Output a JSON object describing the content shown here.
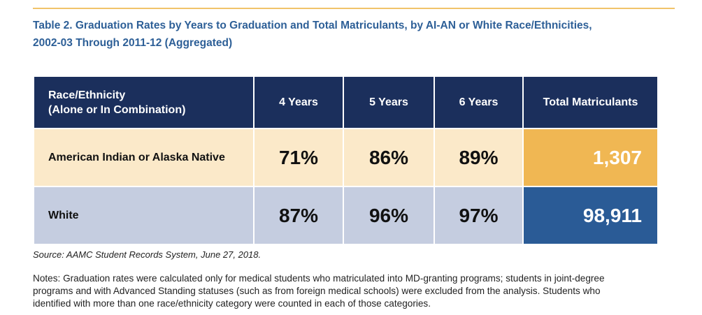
{
  "header": {
    "title_lines": [
      "Table 2. Graduation Rates by Years to Graduation and Total Matriculants, by AI-AN or White Race/Ethnicities,",
      "2002-03 Through 2011-12 (Aggregated)"
    ]
  },
  "table": {
    "columns": [
      [
        "Race/Ethnicity",
        "(Alone or In Combination)"
      ],
      "4 Years",
      "5 Years",
      "6 Years",
      "Total Matriculants"
    ],
    "rows": [
      [
        "American Indian or Alaska Native",
        "71%",
        "86%",
        "89%",
        "1,307"
      ],
      [
        "White",
        "87%",
        "96%",
        "97%",
        "98,911"
      ]
    ]
  },
  "source": "Source: AAMC Student Records System, June 27, 2018.",
  "notes_lines": [
    "Notes: Graduation rates were calculated only for medical students who matriculated into MD-granting programs; students in joint-degree",
    "programs and with Advanced Standing statuses (such as from foreign medical schools) were excluded from the analysis. Students who",
    "identified with more than one race/ethnicity category were counted in each of those categories."
  ]
}
